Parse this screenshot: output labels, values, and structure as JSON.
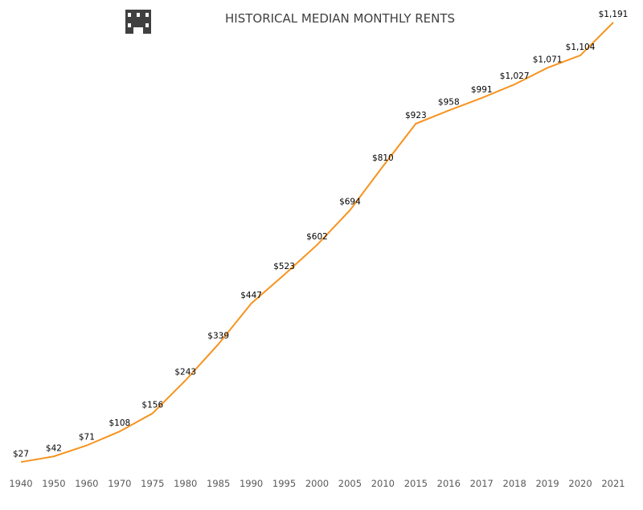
{
  "icon": "building-icon",
  "chart_data": {
    "type": "line",
    "title": "HISTORICAL MEDIAN MONTHLY RENTS",
    "categories": [
      "1940",
      "1950",
      "1960",
      "1970",
      "1975",
      "1980",
      "1985",
      "1990",
      "1995",
      "2000",
      "2005",
      "2010",
      "2015",
      "2016",
      "2017",
      "2018",
      "2019",
      "2020",
      "2021"
    ],
    "values": [
      27,
      42,
      71,
      108,
      156,
      243,
      339,
      447,
      523,
      602,
      694,
      810,
      923,
      958,
      991,
      1027,
      1071,
      1104,
      1191
    ],
    "data_labels": [
      "$27",
      "$42",
      "$71",
      "$108",
      "$156",
      "$243",
      "$339",
      "$447",
      "$523",
      "$602",
      "$694",
      "$810",
      "$923",
      "$958",
      "$991",
      "$1,027",
      "$1,071",
      "$1,104",
      "$1,191"
    ],
    "xlabel": "",
    "ylabel": "",
    "ylim": [
      0,
      1191
    ],
    "grid": false,
    "legend": "none",
    "colors": {
      "line": "#F7931E",
      "title": "#404040",
      "icon": "#404040"
    }
  }
}
